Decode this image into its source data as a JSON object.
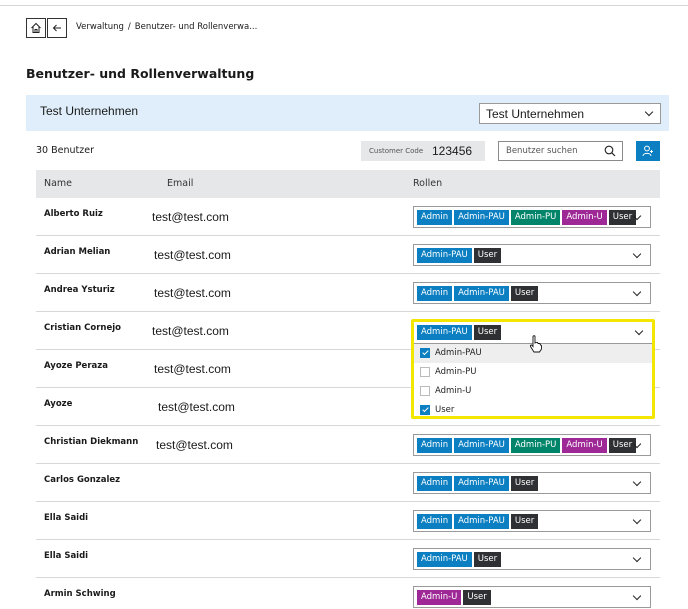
{
  "breadcrumb": {
    "items": [
      "Verwaltung",
      "Benutzer- und Rollenverwa..."
    ],
    "separator": "/"
  },
  "title": "Benutzer- und Rollenverwaltung",
  "company_bar": {
    "label": "Test Unternehmen",
    "select": "Test Unternehmen"
  },
  "toolbar": {
    "user_count": "30 Benutzer",
    "customer_code_label": "Customer Code",
    "customer_code": "123456",
    "search_placeholder": "Benutzer suchen"
  },
  "role_colors": {
    "Admin": "#0b7fc1",
    "Admin-PAU": "#0b7fc1",
    "Admin-PU": "#00856a",
    "Admin-U": "#9e2896",
    "User": "#2e3033"
  },
  "table": {
    "headers": [
      "Name",
      "Email",
      "Rollen"
    ],
    "rows": [
      {
        "name": "Alberto Ruiz",
        "email": "test@test.com",
        "roles": [
          "Admin",
          "Admin-PAU",
          "Admin-PU",
          "Admin-U",
          "User"
        ]
      },
      {
        "name": "Adrian Melian",
        "email": "test@test.com",
        "roles": [
          "Admin-PAU",
          "User"
        ]
      },
      {
        "name": "Andrea Ysturiz",
        "email": "test@test.com",
        "roles": [
          "Admin",
          "Admin-PAU",
          "User"
        ]
      },
      {
        "name": "Cristian Cornejo",
        "email": "test@test.com",
        "roles": [
          "Admin-PAU",
          "User"
        ]
      },
      {
        "name": "Ayoze Peraza",
        "email": "test@test.com",
        "roles": []
      },
      {
        "name": "Ayoze",
        "email": "test@test.com",
        "roles": []
      },
      {
        "name": "Christian Diekmann",
        "email": "test@test.com",
        "roles": [
          "Admin",
          "Admin-PAU",
          "Admin-PU",
          "Admin-U",
          "User"
        ]
      },
      {
        "name": "Carlos Gonzalez",
        "email": "",
        "roles": [
          "Admin",
          "Admin-PAU",
          "User"
        ]
      },
      {
        "name": "Ella Saidi",
        "email": "",
        "roles": [
          "Admin",
          "Admin-PAU",
          "User"
        ]
      },
      {
        "name": "Ella Saidi",
        "email": "",
        "roles": [
          "Admin-PAU",
          "User"
        ]
      },
      {
        "name": "Armin Schwing",
        "email": "",
        "roles": [
          "Admin-U",
          "User"
        ]
      }
    ]
  },
  "dropdown": {
    "row": 3,
    "options": [
      {
        "label": "Admin-PAU",
        "checked": true
      },
      {
        "label": "Admin-PU",
        "checked": false
      },
      {
        "label": "Admin-U",
        "checked": false
      },
      {
        "label": "User",
        "checked": true
      }
    ]
  }
}
